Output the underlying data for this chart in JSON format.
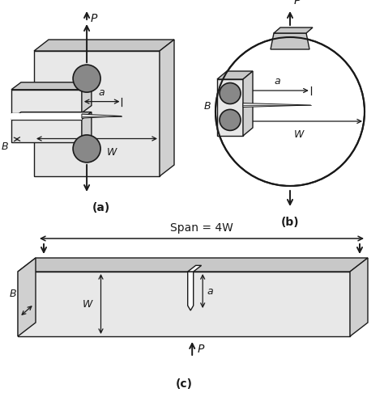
{
  "bg_color": "#ffffff",
  "line_color": "#1a1a1a",
  "dark_gray": "#888888",
  "mid_gray": "#bbbbbb",
  "light_gray": "#d0d0d0",
  "lighter_gray": "#e8e8e8",
  "top_face_gray": "#c8c8c8",
  "label_a": "(a)",
  "label_b": "(b)",
  "label_c": "(c)",
  "span_label": "Span = 4W",
  "P_label": "P",
  "a_label": "a",
  "W_label": "W",
  "B_label": "B"
}
